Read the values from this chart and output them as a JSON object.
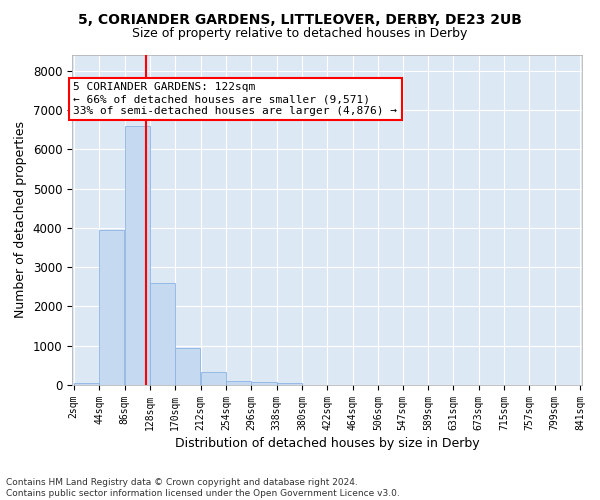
{
  "title1": "5, CORIANDER GARDENS, LITTLEOVER, DERBY, DE23 2UB",
  "title2": "Size of property relative to detached houses in Derby",
  "xlabel": "Distribution of detached houses by size in Derby",
  "ylabel": "Number of detached properties",
  "footer1": "Contains HM Land Registry data © Crown copyright and database right 2024.",
  "footer2": "Contains public sector information licensed under the Open Government Licence v3.0.",
  "bar_edges": [
    2,
    44,
    86,
    128,
    170,
    212,
    254,
    296,
    338,
    380,
    422,
    464,
    506,
    547,
    589,
    631,
    673,
    715,
    757,
    799,
    841
  ],
  "bar_heights": [
    50,
    3950,
    6600,
    2600,
    950,
    330,
    100,
    70,
    50,
    0,
    0,
    0,
    0,
    0,
    0,
    0,
    0,
    0,
    0,
    0
  ],
  "bar_color": "#c5d9f1",
  "bar_edge_color": "#8db4e2",
  "property_size": 122,
  "property_line_color": "#ff0000",
  "ylim": [
    0,
    8400
  ],
  "yticks": [
    0,
    1000,
    2000,
    3000,
    4000,
    5000,
    6000,
    7000,
    8000
  ],
  "annotation_text": "5 CORIANDER GARDENS: 122sqm\n← 66% of detached houses are smaller (9,571)\n33% of semi-detached houses are larger (4,876) →",
  "annotation_box_color": "#ffffff",
  "annotation_box_edge_color": "#ff0000",
  "background_color": "#dde8f5",
  "grid_color": "#ffffff",
  "tick_label_size": 7,
  "ylabel_fontsize": 9,
  "xlabel_fontsize": 9,
  "title1_fontsize": 10,
  "title2_fontsize": 9,
  "footer_fontsize": 6.5
}
